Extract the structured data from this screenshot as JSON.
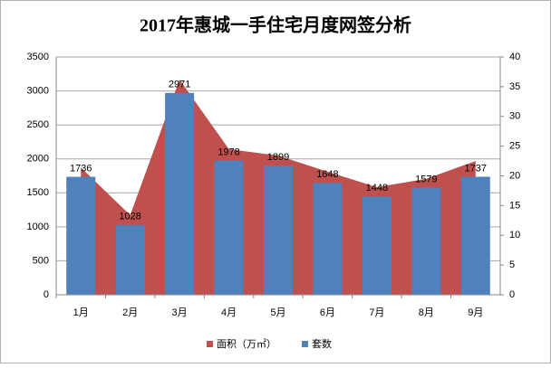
{
  "chart_data": {
    "type": "bar",
    "title": "2017年惠城一手住宅月度网签分析",
    "categories": [
      "1月",
      "2月",
      "3月",
      "4月",
      "5月",
      "6月",
      "7月",
      "8月",
      "9月"
    ],
    "series": [
      {
        "name": "面积（万㎡）",
        "kind": "area",
        "axis": "y2",
        "color": "#c0504d",
        "values": [
          21.4,
          13.4,
          36.2,
          24.5,
          23.4,
          20.7,
          18.1,
          19.5,
          22.5
        ]
      },
      {
        "name": "套数",
        "kind": "bar",
        "color": "#4f81bd",
        "values": [
          1736,
          1028,
          2971,
          1978,
          1899,
          1648,
          1448,
          1579,
          1737
        ]
      }
    ],
    "ylim": [
      0,
      3500
    ],
    "yticks": [
      0,
      500,
      1000,
      1500,
      2000,
      2500,
      3000,
      3500
    ],
    "y2lim": [
      0,
      40
    ],
    "y2ticks": [
      0,
      5,
      10,
      15,
      20,
      25,
      30,
      35,
      40
    ],
    "grid": true,
    "legend": "bottom"
  }
}
